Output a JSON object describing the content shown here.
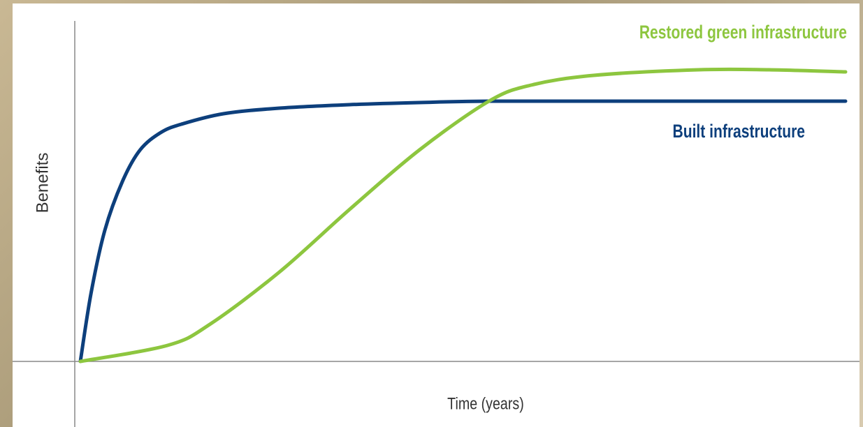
{
  "chart_data": {
    "type": "line",
    "xlabel": "Time (years)",
    "ylabel": "Benefits",
    "xlim": [
      0,
      100
    ],
    "ylim": [
      0,
      100
    ],
    "series": [
      {
        "name": "Built infrastructure",
        "color": "#0d3f7c",
        "x": [
          0,
          1.4,
          3.2,
          5.5,
          7.8,
          10.5,
          13.2,
          18.7,
          26,
          35.2,
          44.3,
          53.4,
          71.7,
          100
        ],
        "values": [
          0,
          19.6,
          37.6,
          51.6,
          60.6,
          65.6,
          68,
          71,
          72.6,
          73.6,
          74.2,
          74.6,
          74.6,
          74.6
        ]
      },
      {
        "name": "Restored green infrastructure",
        "color": "#8dc63f",
        "x": [
          0,
          11.4,
          16.9,
          26,
          35.2,
          44.3,
          53.4,
          58.9,
          67.1,
          80.8,
          90,
          100
        ],
        "values": [
          0,
          4.6,
          10.6,
          25.6,
          43.6,
          60.6,
          74.6,
          79.2,
          82,
          83.6,
          83.6,
          83
        ]
      }
    ]
  }
}
